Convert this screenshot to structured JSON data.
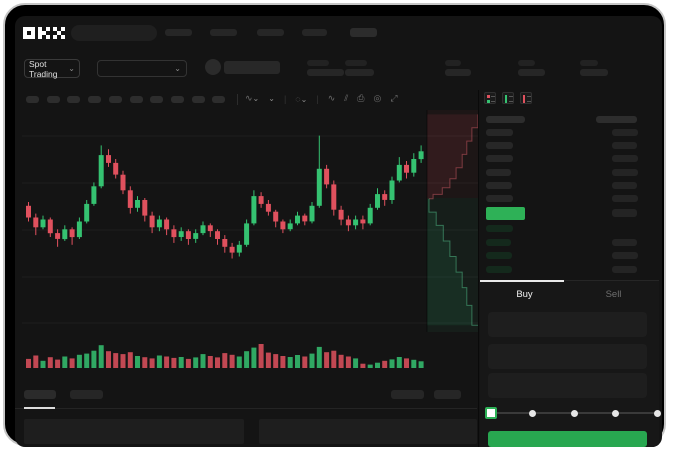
{
  "brand": {
    "logo": "OKX"
  },
  "colors": {
    "candle_up": "#35c271",
    "candle_down": "#e0515e",
    "price_highlight_green": "#2eb157",
    "buy_button_green": "#28a750",
    "app_background": "#141414",
    "frame_black": "#000000"
  },
  "nav": {
    "spot_trading_label": "Spot Trading"
  },
  "toolbar": {
    "timeframe_slots": 10
  },
  "orderbook": {
    "view_mode_icons": [
      "book-both-icon",
      "book-bids-icon",
      "book-asks-icon"
    ],
    "ask_rows": [
      {
        "l": 27,
        "r": 26
      },
      {
        "l": 27,
        "r": 25
      },
      {
        "l": 27,
        "r": 26
      },
      {
        "l": 25,
        "r": 26
      },
      {
        "l": 26,
        "r": 25
      },
      {
        "l": 27,
        "r": 26
      }
    ],
    "price_row": {
      "highlight": "green",
      "right_bar": 25
    },
    "bid_rows": [
      {
        "l": 27,
        "r": 0
      },
      {
        "l": 25,
        "r": 25
      },
      {
        "l": 26,
        "r": 26
      },
      {
        "l": 26,
        "r": 25
      }
    ]
  },
  "trade_panel": {
    "tabs": [
      {
        "label": "Buy",
        "active": true
      },
      {
        "label": "Sell",
        "active": false
      }
    ],
    "field_count": 3,
    "slider": {
      "positions": 5,
      "selected_index": 0
    }
  },
  "chart_data": {
    "type": "candlestick",
    "format": "[open, close, high, low] in relative price units",
    "ylim": [
      0,
      100
    ],
    "grid": true,
    "candles": [
      [
        57,
        51,
        59,
        49
      ],
      [
        51,
        46,
        53,
        42
      ],
      [
        46,
        50,
        52,
        45
      ],
      [
        50,
        43,
        51,
        41
      ],
      [
        43,
        40,
        45,
        36
      ],
      [
        40,
        45,
        47,
        39
      ],
      [
        45,
        41,
        46,
        37
      ],
      [
        41,
        49,
        51,
        40
      ],
      [
        49,
        58,
        60,
        48
      ],
      [
        58,
        67,
        69,
        57
      ],
      [
        67,
        83,
        88,
        66
      ],
      [
        83,
        79,
        86,
        77
      ],
      [
        79,
        73,
        81,
        71
      ],
      [
        73,
        65,
        75,
        63
      ],
      [
        65,
        56,
        67,
        53
      ],
      [
        56,
        60,
        62,
        54
      ],
      [
        60,
        52,
        61,
        49
      ],
      [
        52,
        46,
        54,
        43
      ],
      [
        46,
        50,
        52,
        44
      ],
      [
        50,
        45,
        51,
        42
      ],
      [
        45,
        41,
        47,
        38
      ],
      [
        41,
        44,
        46,
        39
      ],
      [
        44,
        40,
        45,
        37
      ],
      [
        40,
        43,
        45,
        38
      ],
      [
        43,
        47,
        49,
        42
      ],
      [
        47,
        44,
        48,
        41
      ],
      [
        44,
        40,
        45,
        37
      ],
      [
        40,
        36,
        42,
        33
      ],
      [
        36,
        33,
        38,
        30
      ],
      [
        33,
        37,
        39,
        31
      ],
      [
        37,
        48,
        50,
        36
      ],
      [
        48,
        62,
        65,
        47
      ],
      [
        62,
        58,
        64,
        56
      ],
      [
        58,
        54,
        60,
        52
      ],
      [
        54,
        49,
        55,
        46
      ],
      [
        49,
        45,
        50,
        43
      ],
      [
        45,
        48,
        50,
        44
      ],
      [
        48,
        52,
        54,
        47
      ],
      [
        52,
        49,
        53,
        47
      ],
      [
        49,
        57,
        59,
        48
      ],
      [
        57,
        76,
        93,
        56
      ],
      [
        76,
        68,
        78,
        66
      ],
      [
        68,
        55,
        70,
        52
      ],
      [
        55,
        50,
        57,
        47
      ],
      [
        50,
        47,
        52,
        44
      ],
      [
        47,
        50,
        52,
        45
      ],
      [
        50,
        48,
        52,
        45
      ],
      [
        48,
        56,
        58,
        47
      ],
      [
        56,
        63,
        66,
        55
      ],
      [
        63,
        60,
        65,
        57
      ],
      [
        60,
        70,
        72,
        58
      ],
      [
        70,
        78,
        82,
        69
      ],
      [
        78,
        74,
        80,
        71
      ],
      [
        74,
        81,
        84,
        72
      ],
      [
        81,
        85,
        88,
        79
      ]
    ],
    "volume": [
      38,
      52,
      30,
      45,
      35,
      48,
      40,
      55,
      60,
      72,
      95,
      70,
      62,
      58,
      66,
      50,
      45,
      40,
      52,
      48,
      42,
      46,
      38,
      44,
      58,
      50,
      44,
      62,
      55,
      48,
      70,
      85,
      100,
      64,
      58,
      50,
      46,
      54,
      48,
      60,
      88,
      66,
      72,
      55,
      48,
      40,
      18,
      14,
      22,
      30,
      36,
      46,
      40,
      34,
      28
    ],
    "depth_overlay": {
      "asks_curve": [
        [
          1,
          0.02
        ],
        [
          0.88,
          0.08
        ],
        [
          0.78,
          0.14
        ],
        [
          0.69,
          0.2
        ],
        [
          0.57,
          0.26
        ],
        [
          0.45,
          0.31
        ],
        [
          0.3,
          0.35
        ],
        [
          0.12,
          0.38
        ],
        [
          0.04,
          0.4
        ]
      ],
      "bids_curve": [
        [
          0.04,
          0.4
        ],
        [
          0.18,
          0.46
        ],
        [
          0.32,
          0.52
        ],
        [
          0.45,
          0.59
        ],
        [
          0.57,
          0.66
        ],
        [
          0.69,
          0.73
        ],
        [
          0.78,
          0.8
        ],
        [
          0.88,
          0.88
        ],
        [
          1,
          0.97
        ]
      ]
    }
  }
}
